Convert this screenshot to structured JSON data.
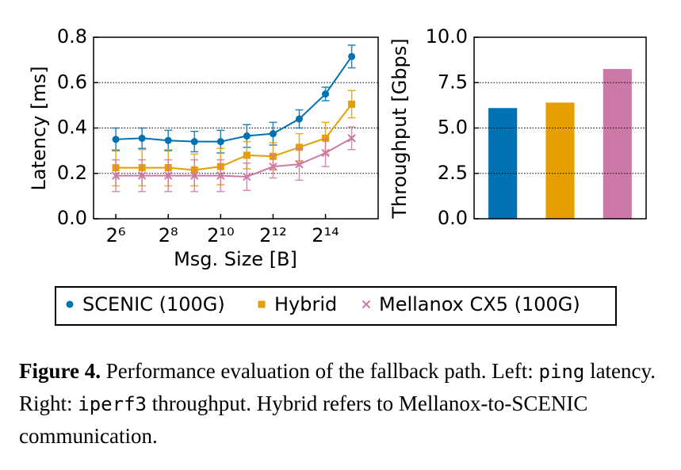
{
  "chart_data": [
    {
      "type": "line",
      "xlabel": "Msg. Size [B]",
      "ylabel": "Latency [ms]",
      "x": [
        64,
        128,
        256,
        512,
        1024,
        2048,
        4096,
        8192,
        16384,
        32768
      ],
      "xscale": "log2",
      "xlim": [
        35.5,
        66000
      ],
      "xticks": [
        {
          "value": 64,
          "label": "2⁶"
        },
        {
          "value": 256,
          "label": "2⁸"
        },
        {
          "value": 1024,
          "label": "2¹⁰"
        },
        {
          "value": 4096,
          "label": "2¹²"
        },
        {
          "value": 16384,
          "label": "2¹⁴"
        }
      ],
      "ylim": [
        0,
        0.8
      ],
      "yticks": [
        {
          "value": 0,
          "label": "0.0"
        },
        0.2,
        0.4,
        0.6,
        0.8
      ],
      "grid": true,
      "legend": "below",
      "series": [
        {
          "name": "SCENIC (100G)",
          "color": "#0072b2",
          "marker": "circle",
          "values": [
            0.35,
            0.355,
            0.345,
            0.34,
            0.34,
            0.365,
            0.375,
            0.44,
            0.55,
            0.715
          ],
          "errors": [
            0.05,
            0.045,
            0.045,
            0.045,
            0.05,
            0.05,
            0.05,
            0.04,
            0.03,
            0.05
          ]
        },
        {
          "name": "Hybrid",
          "color": "#e69f00",
          "marker": "square",
          "values": [
            0.225,
            0.225,
            0.225,
            0.215,
            0.23,
            0.28,
            0.275,
            0.315,
            0.355,
            0.505
          ],
          "errors": [
            0.08,
            0.08,
            0.08,
            0.07,
            0.08,
            0.06,
            0.06,
            0.06,
            0.07,
            0.06
          ]
        },
        {
          "name": "Mellanox CX5 (100G)",
          "color": "#cc79a7",
          "marker": "x",
          "values": [
            0.19,
            0.19,
            0.19,
            0.19,
            0.19,
            0.185,
            0.23,
            0.24,
            0.29,
            0.355
          ],
          "errors": [
            0.07,
            0.07,
            0.07,
            0.07,
            0.07,
            0.06,
            0.05,
            0.07,
            0.06,
            0.05
          ]
        }
      ]
    },
    {
      "type": "bar",
      "ylabel": "Throughput [Gbps]",
      "values": [
        6.1,
        6.4,
        8.25
      ],
      "colors": [
        "#0072b2",
        "#e69f00",
        "#cc79a7"
      ],
      "ylim": [
        0,
        10
      ],
      "yticks": [
        {
          "value": 0,
          "label": "0.0"
        },
        2.5,
        {
          "value": 5,
          "label": "5.0"
        },
        7.5,
        {
          "value": 10,
          "label": "10.0"
        }
      ],
      "grid": true
    }
  ],
  "caption": [
    "Figure 4.",
    " Performance evaluation of the fallback path. Left: ",
    "ping",
    " latency. Right: ",
    "iperf3",
    " throughput. Hybrid refers to Mellanox-to-SCENIC communication."
  ]
}
